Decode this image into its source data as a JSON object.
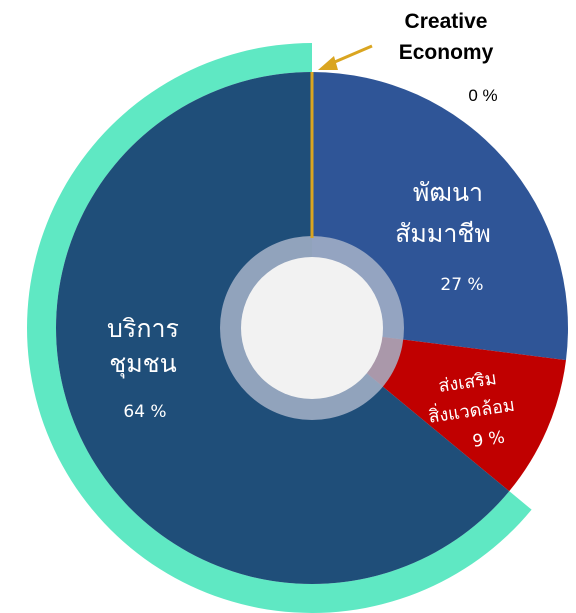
{
  "chart_data": {
    "type": "pie",
    "style": "donut",
    "slices": [
      {
        "label_line1": "พัฒนา",
        "label_line2": "สัมมาชีพ",
        "value": 27,
        "value_text": "27 %",
        "color": "#2F5597"
      },
      {
        "label_line1": "ส่งเสริม",
        "label_line2": "สิ่งแวดล้อม",
        "value": 9,
        "value_text": "9 %",
        "color": "#C00000"
      },
      {
        "label_line1": "บริการ",
        "label_line2": "ชุมชน",
        "value": 64,
        "value_text": "64 %",
        "color": "#1F4E79"
      }
    ],
    "annotation": {
      "line1": "Creative",
      "line2": "Economy",
      "value": 0,
      "value_text": "0 %",
      "line_color": "#DAA520"
    },
    "highlight_color": "#5FE8C3",
    "hole_color": "#F2F2F2",
    "hole_ring_color": "#A6B3C8"
  }
}
